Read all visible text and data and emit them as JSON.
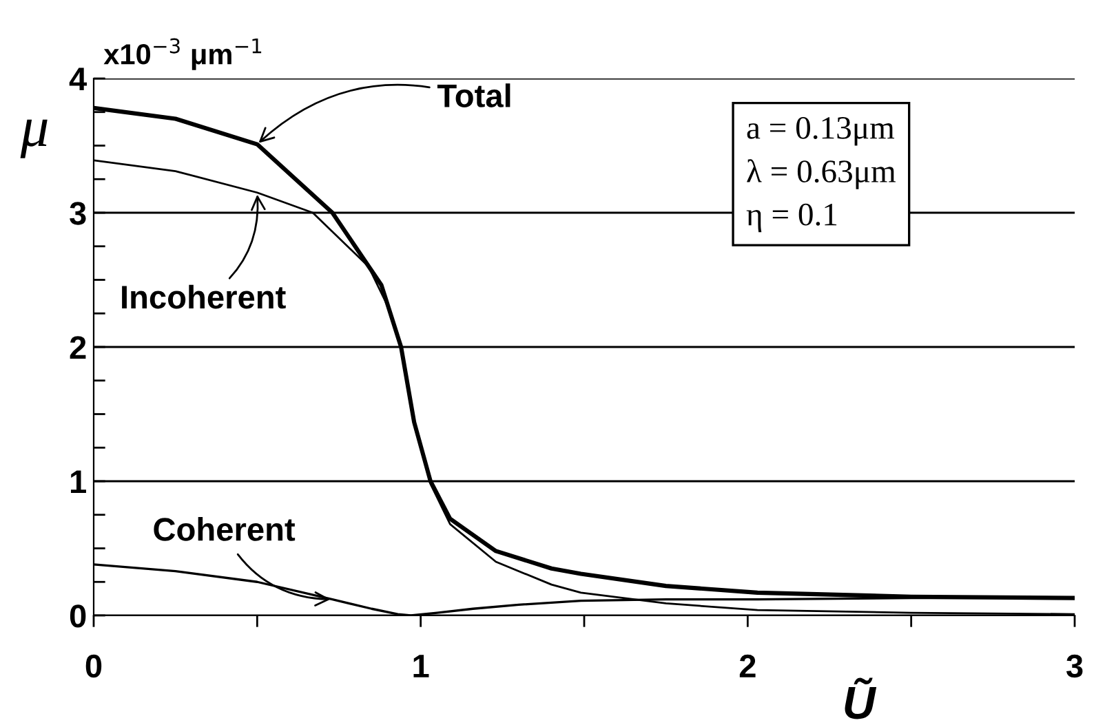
{
  "chart_data": {
    "type": "line",
    "xlabel": "Ũ",
    "ylabel": "μ",
    "annotations": [
      "x10$^{−3}$ μm$^{−1}$",
      "a = 0.13μm",
      "λ = 0.63μm",
      "η = 0.1"
    ],
    "xlim": [
      0,
      3
    ],
    "ylim": [
      0,
      4
    ],
    "xticks": [
      0,
      {
        "value": 0.5,
        "label": null
      },
      1,
      {
        "value": 1.5,
        "label": null
      },
      2,
      {
        "value": 2.5,
        "label": null
      },
      3
    ],
    "yticks": [
      0,
      {
        "value": 0.25,
        "label": null
      },
      {
        "value": 0.5,
        "label": null
      },
      {
        "value": 0.75,
        "label": null
      },
      1,
      {
        "value": 1.25,
        "label": null
      },
      {
        "value": 1.5,
        "label": null
      },
      {
        "value": 1.75,
        "label": null
      },
      2,
      {
        "value": 2.25,
        "label": null
      },
      {
        "value": 2.5,
        "label": null
      },
      {
        "value": 2.75,
        "label": null
      },
      3,
      {
        "value": 3.25,
        "label": null
      },
      {
        "value": 3.5,
        "label": null
      },
      {
        "value": 3.75,
        "label": null
      },
      4
    ],
    "grid": "y",
    "legend": false,
    "marker": "none",
    "line_style": "solid",
    "series": [
      {
        "name": "Total",
        "color": "#000000",
        "x": [
          0,
          0.25,
          0.5,
          0.73,
          0.88,
          0.94,
          0.98,
          1.03,
          1.09,
          1.23,
          1.4,
          1.49,
          1.75,
          2.03,
          2.5,
          3.0
        ],
        "values": [
          3.78,
          3.7,
          3.51,
          3.0,
          2.46,
          2.0,
          1.44,
          1.0,
          0.72,
          0.48,
          0.35,
          0.31,
          0.22,
          0.17,
          0.14,
          0.13
        ]
      },
      {
        "name": "Incoherent",
        "color": "#000000",
        "x": [
          0,
          0.25,
          0.5,
          0.67,
          0.84,
          0.9,
          0.94,
          0.98,
          1.03,
          1.09,
          1.23,
          1.4,
          1.49,
          1.75,
          2.03,
          2.5,
          3.0
        ],
        "values": [
          3.39,
          3.31,
          3.15,
          3.0,
          2.6,
          2.3,
          2.0,
          1.44,
          0.98,
          0.68,
          0.4,
          0.23,
          0.17,
          0.09,
          0.04,
          0.02,
          0.01
        ]
      },
      {
        "name": "Coherent",
        "color": "#000000",
        "x": [
          0,
          0.25,
          0.5,
          0.73,
          0.85,
          0.93,
          0.97,
          1.05,
          1.16,
          1.3,
          1.49,
          1.75,
          2.03,
          2.5,
          3.0
        ],
        "values": [
          0.38,
          0.33,
          0.25,
          0.12,
          0.05,
          0.01,
          0.0,
          0.02,
          0.05,
          0.08,
          0.11,
          0.12,
          0.12,
          0.13,
          0.13
        ]
      }
    ]
  }
}
